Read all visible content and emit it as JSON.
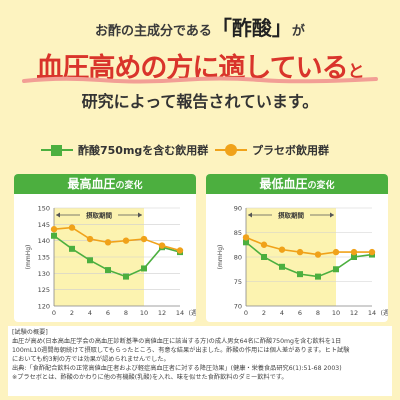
{
  "header": {
    "line1_pre": "お酢の主成分である",
    "line1_highlight": "「酢酸」",
    "line1_post": "が",
    "line2_main": "血圧高めの方に適している",
    "line2_suffix": "と",
    "line3": "研究によって報告されています。"
  },
  "legend": {
    "vinegar_label": "酢酸750mgを含む飲用群",
    "placebo_label": "プラセボ飲用群"
  },
  "colors": {
    "vinegar": "#4caf3f",
    "placebo": "#f0a21a",
    "accent_red": "#d9342b",
    "panel_title": "#4caf3f",
    "intake_band": "#fcf3b0"
  },
  "chart_data": [
    {
      "type": "line",
      "title": "最高血圧",
      "title_suffix": "の変化",
      "ylabel": "(mmHg)",
      "xlabel": "(週)",
      "intake_label": "摂取期間",
      "intake_range": [
        0,
        10
      ],
      "ylim": [
        120,
        150
      ],
      "yticks": [
        120,
        125,
        130,
        135,
        140,
        145,
        150
      ],
      "xticks": [
        0,
        2,
        4,
        6,
        8,
        10,
        12,
        14
      ],
      "series": [
        {
          "name": "酢酸750mgを含む飲用群",
          "x": [
            0,
            2,
            4,
            6,
            8,
            10,
            12,
            14
          ],
          "y": [
            141.5,
            137.5,
            134,
            131,
            129,
            131.5,
            138,
            136.5
          ]
        },
        {
          "name": "プラセボ飲用群",
          "x": [
            0,
            2,
            4,
            6,
            8,
            10,
            12,
            14
          ],
          "y": [
            143.5,
            144,
            140.5,
            139.5,
            140,
            140.5,
            138.5,
            137
          ]
        }
      ]
    },
    {
      "type": "line",
      "title": "最低血圧",
      "title_suffix": "の変化",
      "ylabel": "(mmHg)",
      "xlabel": "(週)",
      "intake_label": "摂取期間",
      "intake_range": [
        0,
        10
      ],
      "ylim": [
        70,
        90
      ],
      "yticks": [
        70,
        75,
        80,
        85,
        90
      ],
      "xticks": [
        0,
        2,
        4,
        6,
        8,
        10,
        12,
        14
      ],
      "series": [
        {
          "name": "酢酸750mgを含む飲用群",
          "x": [
            0,
            2,
            4,
            6,
            8,
            10,
            12,
            14
          ],
          "y": [
            83,
            80,
            78,
            76.5,
            76,
            77.5,
            80,
            80.5
          ]
        },
        {
          "name": "プラセボ飲用群",
          "x": [
            0,
            2,
            4,
            6,
            8,
            10,
            12,
            14
          ],
          "y": [
            84,
            82.5,
            81.5,
            81,
            80.5,
            81,
            81,
            81
          ]
        }
      ]
    }
  ],
  "notes": {
    "heading": "[試験の概要]",
    "line1": "血圧が高め(日本高血圧学会の高血圧診断基準の高値血圧に該当する方)の成人男女64名に酢酸750mgを含む飲料を1日",
    "line2": "100mL10週間毎朝続けて摂取してもらったところ、有意な結果が出ました。酢酸の作用には個人差があります。ヒト試験",
    "line3": "においても約3割の方では効果が認められませんでした。",
    "line4": "出典:「食酢配合飲料の正常高値血圧者および軽症高血圧者に対する降圧効果」(健康・栄養食品研究6(1):51-68 2003)",
    "line5": "※プラセボとは、酢酸のかわりに他の有機酸(乳酸)を入れ、味を似せた食酢飲料のダミー飲料です。"
  }
}
